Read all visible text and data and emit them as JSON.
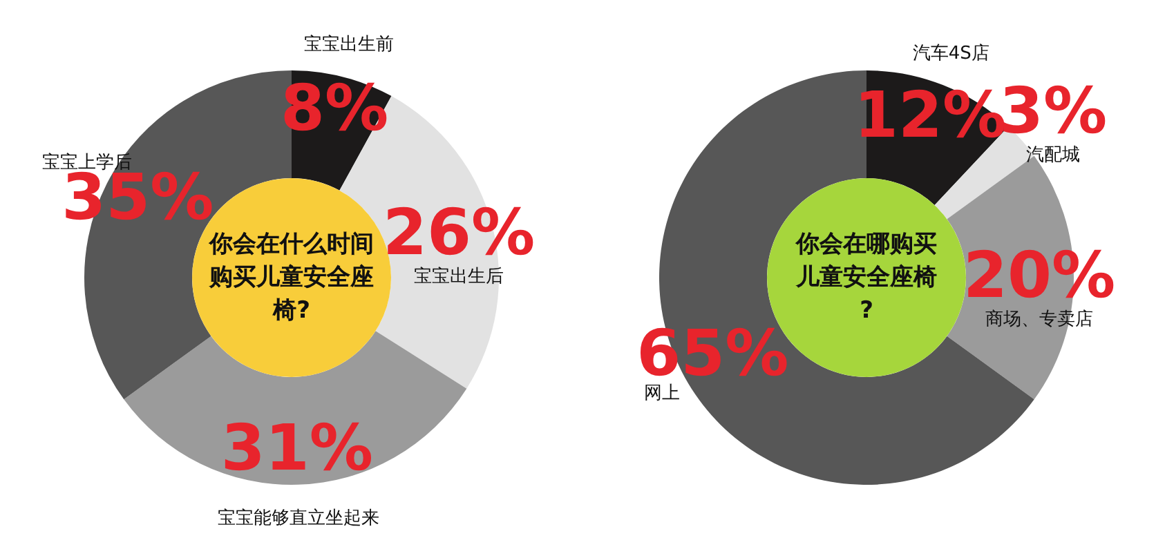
{
  "chart_data": [
    {
      "type": "donut",
      "title": "你会在什么时间购买儿童安全座椅?",
      "categories": [
        "宝宝出生前",
        "宝宝出生后",
        "宝宝能够直立坐起来",
        "宝宝上学后"
      ],
      "values": [
        8,
        26,
        31,
        35
      ],
      "value_labels": [
        "8%",
        "26%",
        "31%",
        "35%"
      ],
      "colors": [
        "#1c1a1a",
        "#e2e2e2",
        "#9b9b9b",
        "#575757"
      ],
      "legend": false
    },
    {
      "type": "donut",
      "title": "你会在哪购买儿童安全座椅?",
      "categories": [
        "汽车4S店",
        "汽配城",
        "商场、专卖店",
        "网上"
      ],
      "values": [
        12,
        3,
        20,
        65
      ],
      "value_labels": [
        "12%",
        "3%",
        "20%",
        "65%"
      ],
      "colors": [
        "#1c1a1a",
        "#e2e2e2",
        "#9b9b9b",
        "#575757"
      ],
      "legend": false
    }
  ]
}
